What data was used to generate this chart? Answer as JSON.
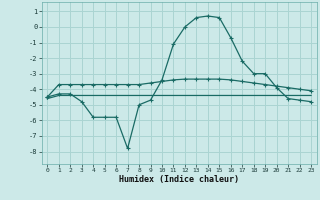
{
  "title": "",
  "xlabel": "Humidex (Indice chaleur)",
  "bg_color": "#cce9e8",
  "grid_color": "#aad4d2",
  "line_color": "#1a6b65",
  "x_ticks": [
    0,
    1,
    2,
    3,
    4,
    5,
    6,
    7,
    8,
    9,
    10,
    11,
    12,
    13,
    14,
    15,
    16,
    17,
    18,
    19,
    20,
    21,
    22,
    23
  ],
  "y_ticks": [
    -8,
    -7,
    -6,
    -5,
    -4,
    -3,
    -2,
    -1,
    0,
    1
  ],
  "xlim": [
    -0.5,
    23.5
  ],
  "ylim": [
    -8.8,
    1.6
  ],
  "line1_x": [
    0,
    1,
    2,
    3,
    4,
    5,
    6,
    7,
    8,
    9,
    10,
    11,
    12,
    13,
    14,
    15,
    16,
    17,
    18,
    19,
    20,
    21,
    22,
    23
  ],
  "line1_y": [
    -4.5,
    -3.7,
    -3.7,
    -3.7,
    -3.7,
    -3.7,
    -3.7,
    -3.7,
    -3.7,
    -3.6,
    -3.5,
    -3.4,
    -3.35,
    -3.35,
    -3.35,
    -3.35,
    -3.4,
    -3.5,
    -3.6,
    -3.7,
    -3.8,
    -3.9,
    -4.0,
    -4.1
  ],
  "line2_x": [
    0,
    1,
    2,
    3,
    4,
    5,
    6,
    7,
    8,
    9,
    10,
    11,
    12,
    13,
    14,
    15,
    16,
    17,
    18,
    19,
    20,
    21,
    22,
    23
  ],
  "line2_y": [
    -4.6,
    -4.4,
    -4.4,
    -4.4,
    -4.4,
    -4.4,
    -4.4,
    -4.4,
    -4.4,
    -4.4,
    -4.4,
    -4.4,
    -4.4,
    -4.4,
    -4.4,
    -4.4,
    -4.4,
    -4.4,
    -4.4,
    -4.4,
    -4.4,
    -4.4,
    -4.4,
    -4.4
  ],
  "line3_x": [
    0,
    1,
    2,
    3,
    4,
    5,
    6,
    7,
    8,
    9,
    10,
    11,
    12,
    13,
    14,
    15,
    16,
    17,
    18,
    19,
    20,
    21,
    22,
    23
  ],
  "line3_y": [
    -4.5,
    -4.3,
    -4.3,
    -4.8,
    -5.8,
    -5.8,
    -5.8,
    -7.8,
    -5.0,
    -4.7,
    -3.4,
    -1.1,
    0.0,
    0.6,
    0.7,
    0.6,
    -0.7,
    -2.2,
    -3.0,
    -3.0,
    -3.9,
    -4.6,
    -4.7,
    -4.8
  ],
  "marker_size": 3,
  "linewidth": 0.9
}
